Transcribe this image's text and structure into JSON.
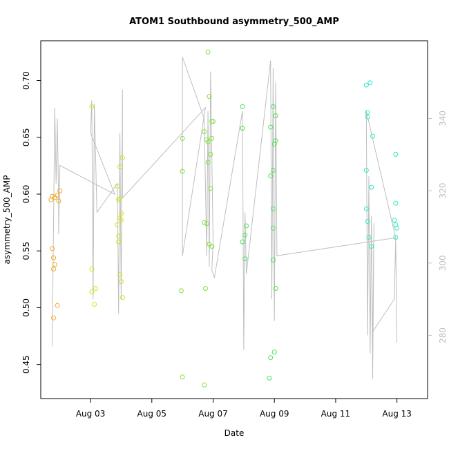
{
  "chart_data": {
    "type": "scatter",
    "title": "ATOM1 Southbound asymmetry_500_AMP",
    "xlabel": "Date",
    "ylabel": "asymmetry_500_AMP",
    "x_is_date": true,
    "xlim": [
      "2023-08-01 09:00",
      "2023-08-14 00:00"
    ],
    "ylim": [
      0.42,
      0.735
    ],
    "x_ticks": [
      {
        "value": "2023-08-03",
        "label": "Aug 03"
      },
      {
        "value": "2023-08-05",
        "label": "Aug 05"
      },
      {
        "value": "2023-08-07",
        "label": "Aug 07"
      },
      {
        "value": "2023-08-09",
        "label": "Aug 09"
      },
      {
        "value": "2023-08-11",
        "label": "Aug 11"
      },
      {
        "value": "2023-08-13",
        "label": "Aug 13"
      }
    ],
    "y_ticks": [
      0.45,
      0.5,
      0.55,
      0.6,
      0.65,
      0.7
    ],
    "y2_lim": [
      262.5,
      361.5
    ],
    "y2_ticks": [
      280,
      300,
      320,
      340
    ],
    "y2_color": "#bebebe",
    "grid": false,
    "legend": "none",
    "series": [
      {
        "color": "#f5a623",
        "points": [
          [
            "2023-08-01 19:00",
            0.491
          ],
          [
            "2023-08-01 22:00",
            0.502
          ],
          [
            "2023-08-01 19:00",
            0.534
          ],
          [
            "2023-08-01 20:00",
            0.538
          ],
          [
            "2023-08-01 19:00",
            0.544
          ],
          [
            "2023-08-01 18:00",
            0.552
          ],
          [
            "2023-08-01 17:00",
            0.595
          ],
          [
            "2023-08-01 18:00",
            0.598
          ],
          [
            "2023-08-01 20:00",
            0.597
          ],
          [
            "2023-08-01 23:00",
            0.594
          ],
          [
            "2023-08-01 22:00",
            0.599
          ],
          [
            "2023-08-02 00:00",
            0.603
          ]
        ]
      },
      {
        "color": "#d4e02a",
        "points": [
          [
            "2023-08-03 01:00",
            0.677
          ],
          [
            "2023-08-03 01:00",
            0.534
          ],
          [
            "2023-08-03 01:00",
            0.514
          ],
          [
            "2023-08-03 04:00",
            0.517
          ],
          [
            "2023-08-03 03:00",
            0.503
          ],
          [
            "2023-08-03 21:00",
            0.607
          ],
          [
            "2023-08-03 22:00",
            0.595
          ],
          [
            "2023-08-03 23:00",
            0.596
          ],
          [
            "2023-08-03 23:00",
            0.579
          ],
          [
            "2023-08-03 21:00",
            0.573
          ],
          [
            "2023-08-04 00:00",
            0.583
          ],
          [
            "2023-08-04 00:00",
            0.577
          ],
          [
            "2023-08-03 22:00",
            0.563
          ],
          [
            "2023-08-03 22:00",
            0.558
          ],
          [
            "2023-08-04 00:00",
            0.523
          ],
          [
            "2023-08-03 23:00",
            0.529
          ],
          [
            "2023-08-04 01:00",
            0.509
          ],
          [
            "2023-08-04 01:00",
            0.632
          ],
          [
            "2023-08-03 23:00",
            0.624
          ]
        ]
      },
      {
        "color": "#7ee03a",
        "points": [
          [
            "2023-08-06 00:00",
            0.649
          ],
          [
            "2023-08-06 00:00",
            0.62
          ],
          [
            "2023-08-05 23:00",
            0.515
          ],
          [
            "2023-08-06 00:00",
            0.439
          ],
          [
            "2023-08-06 20:00",
            0.725
          ],
          [
            "2023-08-06 21:00",
            0.686
          ],
          [
            "2023-08-06 17:00",
            0.655
          ],
          [
            "2023-08-06 20:00",
            0.646
          ],
          [
            "2023-08-06 19:00",
            0.648
          ],
          [
            "2023-08-06 23:00",
            0.664
          ],
          [
            "2023-08-07 00:00",
            0.664
          ],
          [
            "2023-08-06 23:00",
            0.649
          ],
          [
            "2023-08-06 22:00",
            0.635
          ],
          [
            "2023-08-06 20:00",
            0.628
          ],
          [
            "2023-08-06 22:00",
            0.605
          ],
          [
            "2023-08-06 17:00",
            0.575
          ],
          [
            "2023-08-06 19:00",
            0.574
          ],
          [
            "2023-08-06 21:00",
            0.556
          ],
          [
            "2023-08-06 23:00",
            0.554
          ],
          [
            "2023-08-06 18:00",
            0.517
          ],
          [
            "2023-08-06 17:00",
            0.432
          ]
        ]
      },
      {
        "color": "#4de05a",
        "points": [
          [
            "2023-08-07 23:00",
            0.677
          ],
          [
            "2023-08-07 23:00",
            0.658
          ],
          [
            "2023-08-08 02:00",
            0.572
          ],
          [
            "2023-08-08 01:00",
            0.564
          ],
          [
            "2023-08-07 23:00",
            0.558
          ],
          [
            "2023-08-08 01:00",
            0.543
          ],
          [
            "2023-08-08 21:00",
            0.659
          ],
          [
            "2023-08-08 23:00",
            0.677
          ],
          [
            "2023-08-09 01:00",
            0.669
          ],
          [
            "2023-08-09 01:00",
            0.647
          ],
          [
            "2023-08-09 00:00",
            0.644
          ],
          [
            "2023-08-08 23:00",
            0.621
          ],
          [
            "2023-08-08 21:00",
            0.616
          ],
          [
            "2023-08-08 23:00",
            0.587
          ],
          [
            "2023-08-08 23:00",
            0.57
          ],
          [
            "2023-08-08 23:00",
            0.542
          ],
          [
            "2023-08-09 01:00",
            0.517
          ],
          [
            "2023-08-09 00:00",
            0.461
          ],
          [
            "2023-08-08 21:00",
            0.456
          ],
          [
            "2023-08-08 20:00",
            0.438
          ]
        ]
      },
      {
        "color": "#2ee8c8",
        "points": [
          [
            "2023-08-12 00:00",
            0.696
          ],
          [
            "2023-08-12 03:00",
            0.698
          ],
          [
            "2023-08-12 01:00",
            0.672
          ],
          [
            "2023-08-12 01:00",
            0.668
          ],
          [
            "2023-08-12 05:00",
            0.651
          ],
          [
            "2023-08-12 00:00",
            0.621
          ],
          [
            "2023-08-12 04:00",
            0.606
          ],
          [
            "2023-08-12 00:00",
            0.587
          ],
          [
            "2023-08-12 01:00",
            0.576
          ],
          [
            "2023-08-12 02:00",
            0.562
          ],
          [
            "2023-08-12 04:00",
            0.554
          ],
          [
            "2023-08-12 23:00",
            0.635
          ],
          [
            "2023-08-12 23:00",
            0.592
          ],
          [
            "2023-08-12 22:00",
            0.577
          ],
          [
            "2023-08-12 23:00",
            0.573
          ],
          [
            "2023-08-13 00:00",
            0.57
          ],
          [
            "2023-08-12 23:00",
            0.562
          ]
        ]
      }
    ],
    "line_series": {
      "axis": "right",
      "color": "#bebebe",
      "points": [
        [
          "2023-08-01 18:00",
          277
        ],
        [
          "2023-08-01 20:00",
          343
        ],
        [
          "2023-08-01 21:00",
          322
        ],
        [
          "2023-08-01 22:00",
          340
        ],
        [
          "2023-08-01 23:00",
          317
        ],
        [
          "2023-08-01 23:00",
          308
        ],
        [
          "2023-08-02 00:00",
          327
        ],
        [
          "2023-08-03 19:00",
          319
        ],
        [
          "2023-08-03 00:00",
          336
        ],
        [
          "2023-08-03 01:00",
          345
        ],
        [
          "2023-08-03 02:00",
          290
        ],
        [
          "2023-08-03 03:00",
          344
        ],
        [
          "2023-08-03 05:00",
          314
        ],
        [
          "2023-08-03 21:00",
          322
        ],
        [
          "2023-08-03 22:00",
          286
        ],
        [
          "2023-08-03 23:00",
          336
        ],
        [
          "2023-08-04 00:00",
          290
        ],
        [
          "2023-08-04 01:00",
          348
        ],
        [
          "2023-08-04 01:00",
          318
        ],
        [
          "2023-08-06 18:00",
          343
        ],
        [
          "2023-08-06 00:00",
          302
        ],
        [
          "2023-08-06 00:00",
          357
        ],
        [
          "2023-08-06 17:00",
          340
        ],
        [
          "2023-08-06 19:00",
          302
        ],
        [
          "2023-08-06 20:00",
          342
        ],
        [
          "2023-08-06 21:00",
          299
        ],
        [
          "2023-08-06 22:00",
          353
        ],
        [
          "2023-08-07 00:00",
          306
        ],
        [
          "2023-08-06 23:00",
          298
        ],
        [
          "2023-08-07 01:00",
          296
        ],
        [
          "2023-08-07 23:00",
          342
        ],
        [
          "2023-08-08 00:00",
          276
        ],
        [
          "2023-08-08 01:00",
          314
        ],
        [
          "2023-08-08 02:00",
          297
        ],
        [
          "2023-08-08 21:00",
          356
        ],
        [
          "2023-08-08 22:00",
          290
        ],
        [
          "2023-08-08 23:00",
          354
        ],
        [
          "2023-08-09 00:00",
          284
        ],
        [
          "2023-08-09 01:00",
          350
        ],
        [
          "2023-08-09 02:00",
          302
        ],
        [
          "2023-08-12 23:00",
          307
        ],
        [
          "2023-08-12 00:00",
          342
        ],
        [
          "2023-08-12 01:00",
          280
        ],
        [
          "2023-08-12 02:00",
          324
        ],
        [
          "2023-08-12 03:00",
          275
        ],
        [
          "2023-08-12 04:00",
          313
        ],
        [
          "2023-08-12 05:00",
          268
        ],
        [
          "2023-08-12 06:00",
          311
        ],
        [
          "2023-08-12 05:00",
          281
        ],
        [
          "2023-08-12 22:00",
          290
        ],
        [
          "2023-08-12 23:00",
          307
        ],
        [
          "2023-08-13 00:00",
          278
        ]
      ]
    }
  }
}
